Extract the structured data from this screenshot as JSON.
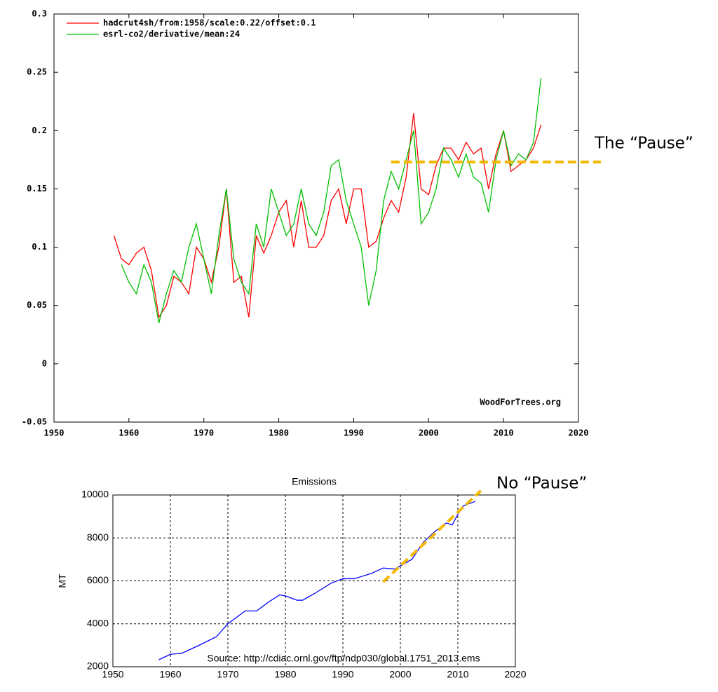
{
  "chart_data": [
    {
      "type": "line",
      "x": [
        1958,
        1959,
        1960,
        1961,
        1962,
        1963,
        1964,
        1965,
        1966,
        1967,
        1968,
        1969,
        1970,
        1971,
        1972,
        1973,
        1974,
        1975,
        1976,
        1977,
        1978,
        1979,
        1980,
        1981,
        1982,
        1983,
        1984,
        1985,
        1986,
        1987,
        1988,
        1989,
        1990,
        1991,
        1992,
        1993,
        1994,
        1995,
        1996,
        1997,
        1998,
        1999,
        2000,
        2001,
        2002,
        2003,
        2004,
        2005,
        2006,
        2007,
        2008,
        2009,
        2010,
        2011,
        2012,
        2013,
        2014,
        2015
      ],
      "series": [
        {
          "name": "hadcrut4sh/from:1958/scale:0.22/offset:0.1",
          "color": "#ff0000",
          "values": [
            0.11,
            0.09,
            0.085,
            0.095,
            0.1,
            0.08,
            0.04,
            0.05,
            0.075,
            0.07,
            0.06,
            0.1,
            0.09,
            0.07,
            0.1,
            0.15,
            0.07,
            0.075,
            0.04,
            0.11,
            0.095,
            0.11,
            0.13,
            0.14,
            0.1,
            0.14,
            0.1,
            0.1,
            0.11,
            0.14,
            0.15,
            0.12,
            0.15,
            0.15,
            0.1,
            0.105,
            0.125,
            0.14,
            0.13,
            0.16,
            0.215,
            0.15,
            0.145,
            0.17,
            0.185,
            0.185,
            0.175,
            0.19,
            0.18,
            0.185,
            0.15,
            0.18,
            0.2,
            0.165,
            0.17,
            0.175,
            0.185,
            0.205
          ]
        },
        {
          "name": "esrl-co2/derivative/mean:24",
          "color": "#00c000",
          "values": [
            null,
            0.085,
            0.07,
            0.06,
            0.085,
            0.07,
            0.035,
            0.06,
            0.08,
            0.07,
            0.1,
            0.12,
            0.09,
            0.06,
            0.11,
            0.15,
            0.09,
            0.07,
            0.06,
            0.12,
            0.1,
            0.15,
            0.13,
            0.11,
            0.12,
            0.15,
            0.12,
            0.11,
            0.13,
            0.17,
            0.175,
            0.14,
            0.12,
            0.1,
            0.05,
            0.08,
            0.14,
            0.165,
            0.15,
            0.175,
            0.2,
            0.12,
            0.13,
            0.15,
            0.185,
            0.175,
            0.16,
            0.18,
            0.16,
            0.155,
            0.13,
            0.175,
            0.2,
            0.17,
            0.18,
            0.175,
            0.19,
            0.245
          ]
        }
      ],
      "xlim": [
        1950,
        2020
      ],
      "xticks": [
        1950,
        1960,
        1970,
        1980,
        1990,
        2000,
        2010,
        2020
      ],
      "ylim": [
        -0.05,
        0.3
      ],
      "yticks": [
        -0.05,
        0,
        0.05,
        0.1,
        0.15,
        0.2,
        0.25,
        0.3
      ],
      "watermark": "WoodForTrees.org",
      "annotations": [
        {
          "text": "The “Pause”",
          "x": [
            1995,
            2023
          ],
          "y": [
            0.173,
            0.173
          ],
          "color": "#f5b800"
        }
      ]
    },
    {
      "type": "line",
      "title": "Emissions",
      "ylabel": "MT",
      "x": [
        1958,
        1960,
        1962,
        1965,
        1968,
        1970,
        1973,
        1975,
        1977,
        1979,
        1980,
        1982,
        1983,
        1985,
        1988,
        1990,
        1992,
        1995,
        1997,
        1999,
        2000,
        2002,
        2004,
        2006,
        2008,
        2009,
        2010,
        2011,
        2013
      ],
      "values": [
        2330,
        2580,
        2630,
        3000,
        3400,
        4000,
        4600,
        4600,
        5000,
        5350,
        5300,
        5100,
        5100,
        5400,
        5900,
        6100,
        6100,
        6350,
        6600,
        6550,
        6700,
        7000,
        7800,
        8300,
        8700,
        8600,
        9100,
        9500,
        9700
      ],
      "color": "#0000ff",
      "xlim": [
        1950,
        2020
      ],
      "xticks": [
        1950,
        1960,
        1970,
        1980,
        1990,
        2000,
        2010,
        2020
      ],
      "ylim": [
        2000,
        10000
      ],
      "yticks": [
        2000,
        4000,
        6000,
        8000,
        10000
      ],
      "grid": true,
      "source": "Source: http://cdiac.ornl.gov/ftp/ndp030/global.1751_2013.ems",
      "annotations": [
        {
          "text": "No “Pause”",
          "x": [
            1997,
            2014
          ],
          "y": [
            5950,
            10200
          ],
          "color": "#f5b800"
        }
      ]
    }
  ]
}
